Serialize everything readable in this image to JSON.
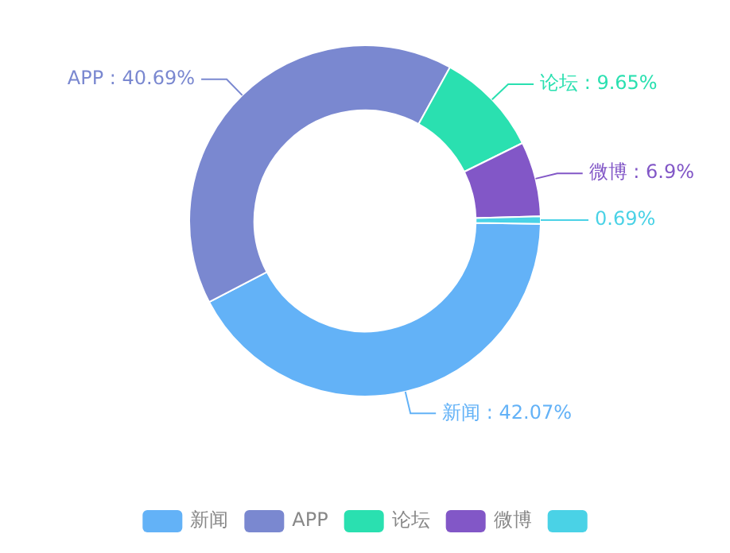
{
  "chart_data": {
    "type": "donut",
    "categories": [
      "新闻",
      "APP",
      "论坛",
      "微博",
      null
    ],
    "values": [
      42.07,
      40.69,
      9.65,
      6.9,
      0.69
    ],
    "value_labels": [
      "新闻 : 42.07%",
      "APP : 40.69%",
      "论坛 : 9.65%",
      "微博 : 6.9%",
      "0.69%"
    ],
    "colors": [
      "#63b2f7",
      "#7a88d0",
      "#2ae0b0",
      "#8257c7",
      "#4ad2e6"
    ],
    "legend": "bottom"
  }
}
